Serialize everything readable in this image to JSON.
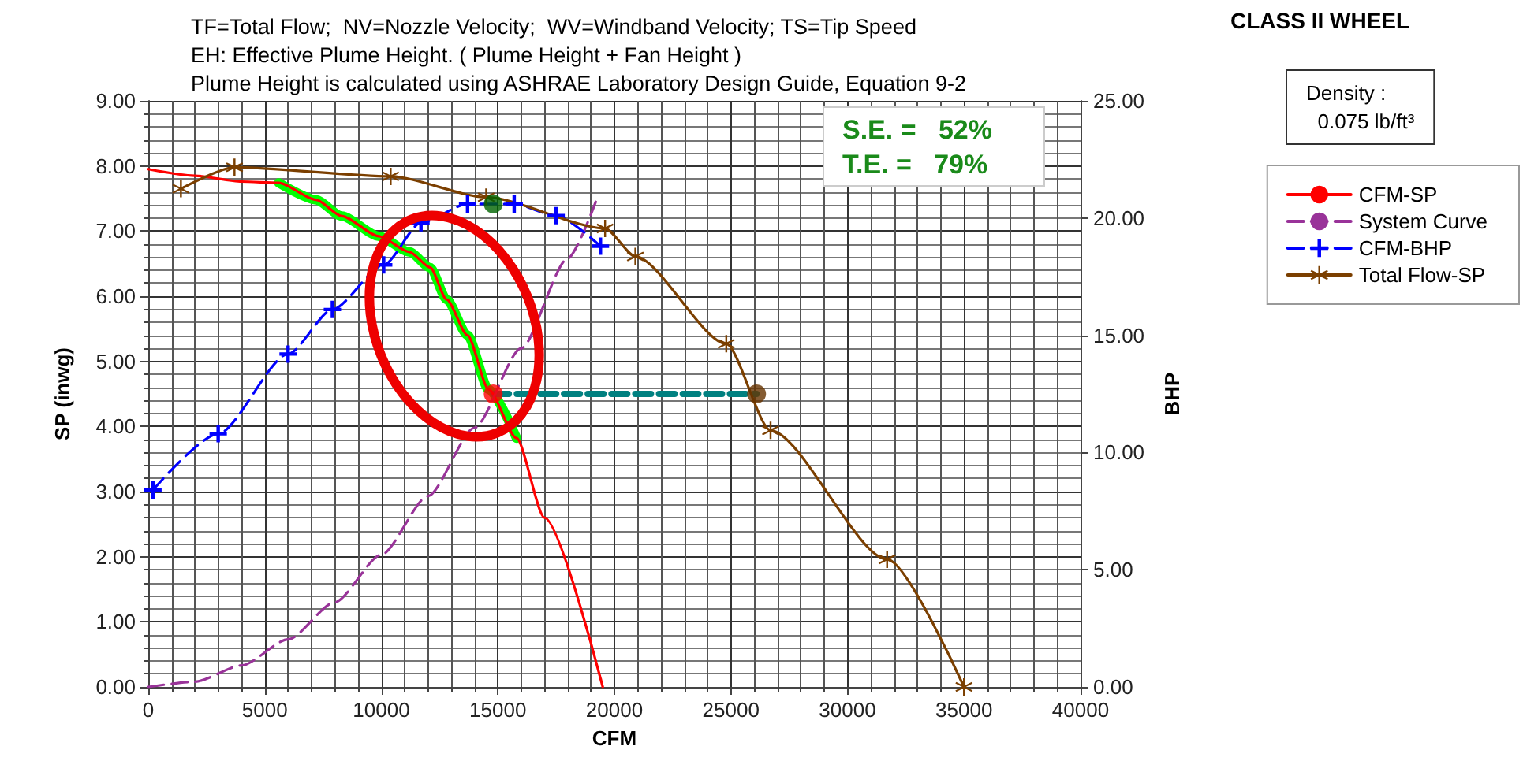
{
  "chart_data": {
    "type": "line",
    "title": "TF=Total Flow;  NV=Nozzle Velocity;  WV=Windband Velocity; TS=Tip Speed\nEH: Effective Plume Height. ( Plume Height + Fan Height )\nPlume Height is calculated using ASHRAE Laboratory Design Guide, Equation 9-2",
    "xlabel": "CFM",
    "ylabel": "SP (inwg)",
    "y2label": "BHP",
    "annotations": [
      "CLASS II WHEEL",
      "Density :\n  0.075 lb/ft³",
      "S.E. =   52%",
      "T.E. =   79%"
    ],
    "xlim": [
      0,
      40000
    ],
    "xticks": [
      0,
      5000,
      10000,
      15000,
      20000,
      25000,
      30000,
      35000,
      40000
    ],
    "ylim": [
      0,
      9
    ],
    "yticks": [
      {
        "value": 0,
        "label": "0.00"
      },
      {
        "value": 1,
        "label": "1.00"
      },
      {
        "value": 2,
        "label": "2.00"
      },
      {
        "value": 3,
        "label": "3.00"
      },
      {
        "value": 4,
        "label": "4.00"
      },
      {
        "value": 5,
        "label": "5.00"
      },
      {
        "value": 6,
        "label": "6.00"
      },
      {
        "value": 7,
        "label": "7.00"
      },
      {
        "value": 8,
        "label": "8.00"
      },
      {
        "value": 9,
        "label": "9.00"
      }
    ],
    "y2lim": [
      0,
      25
    ],
    "y2ticks": [
      {
        "value": 0,
        "label": "0.00"
      },
      {
        "value": 5,
        "label": "5.00"
      },
      {
        "value": 10,
        "label": "10.00"
      },
      {
        "value": 15,
        "label": "15.00"
      },
      {
        "value": 20,
        "label": "20.00"
      },
      {
        "value": 25,
        "label": "25.00"
      }
    ],
    "grid": true,
    "legend": "right",
    "series": [
      {
        "name": "CFM-SP",
        "color": "#ff0000",
        "x": [
          0,
          2000,
          4000,
          5600,
          7200,
          8300,
          9900,
          11200,
          12100,
          12800,
          13700,
          14600,
          15800,
          17000,
          19500
        ],
        "values": [
          7.95,
          7.85,
          7.76,
          7.74,
          7.48,
          7.23,
          6.92,
          6.68,
          6.44,
          5.95,
          5.4,
          4.57,
          3.82,
          2.6,
          0
        ]
      },
      {
        "name": "System Curve",
        "color": "#993399",
        "line_style": "dashed",
        "x": [
          0,
          2000,
          4000,
          6000,
          8000,
          10000,
          12000,
          14000,
          16000,
          18000,
          19200
        ],
        "values": [
          0,
          0.08,
          0.33,
          0.73,
          1.3,
          2.03,
          2.93,
          3.98,
          5.2,
          6.58,
          7.45
        ]
      },
      {
        "name": "CFM-BHP",
        "color": "#0000ff",
        "axis": "y2",
        "marker": "cross",
        "line_style": "dashed",
        "x": [
          200,
          3000,
          6000,
          7900,
          10100,
          11700,
          13700,
          15700,
          17500,
          19400
        ],
        "values": [
          8.4,
          10.8,
          14.2,
          16.1,
          18.0,
          19.8,
          20.6,
          20.6,
          20.1,
          18.8
        ]
      },
      {
        "name": "Total Flow-SP",
        "color": "#7b3f00",
        "marker": "star",
        "x": [
          1400,
          3700,
          10400,
          14500,
          19600,
          20900,
          24800,
          26700,
          31700,
          35000
        ],
        "values": [
          7.65,
          7.98,
          7.84,
          7.52,
          7.04,
          6.61,
          5.27,
          3.94,
          1.96,
          0
        ]
      },
      {
        "color": "#00ff00",
        "x": [
          5600,
          7200,
          8300,
          9900,
          11200,
          12100,
          12800,
          13700,
          14600,
          15800
        ],
        "values": [
          7.74,
          7.48,
          7.23,
          6.92,
          6.68,
          6.44,
          5.95,
          5.4,
          4.57,
          3.82
        ]
      },
      {
        "color": "#008080",
        "line_style": "dashed",
        "x": [
          14800,
          26100
        ],
        "values": [
          4.5,
          4.5
        ]
      },
      {
        "type": "scatter",
        "marker": "circle",
        "color": "#ff0000",
        "x": [
          14800
        ],
        "values": [
          4.5
        ]
      },
      {
        "type": "scatter",
        "marker": "circle",
        "color": "#663300",
        "x": [
          26100
        ],
        "values": [
          4.5
        ]
      },
      {
        "type": "scatter",
        "marker": "circle",
        "color": "#006400",
        "axis": "y2",
        "x": [
          14800
        ],
        "values": [
          20.6
        ]
      }
    ]
  }
}
